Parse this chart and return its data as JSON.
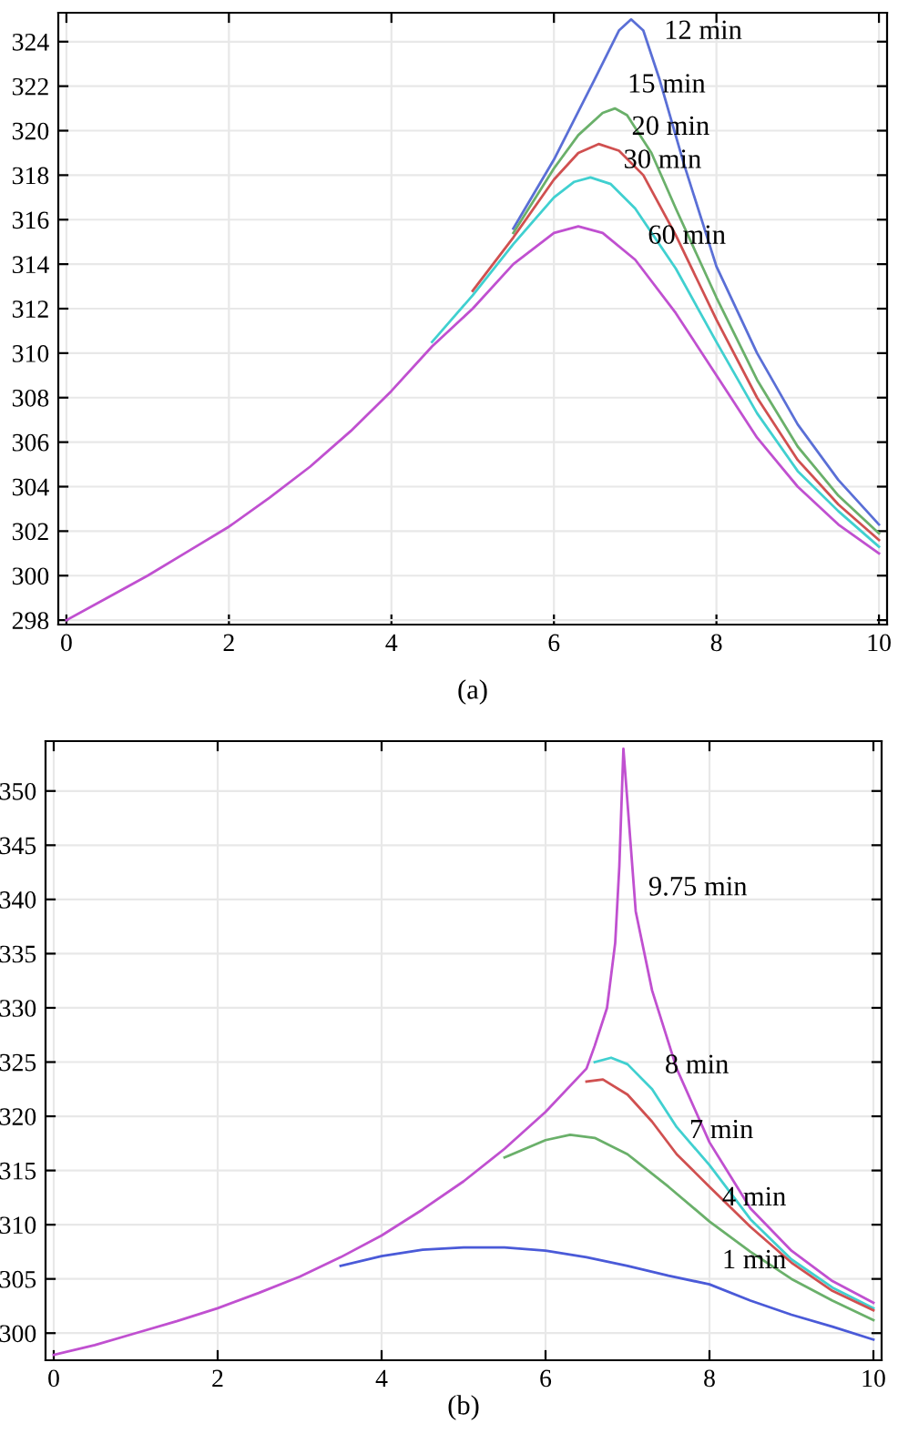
{
  "chart_data": [
    {
      "type": "line",
      "xlim": [
        -0.1,
        10.1
      ],
      "ylim": [
        297.8,
        325.3
      ],
      "xticks": [
        0,
        2,
        4,
        6,
        8,
        10
      ],
      "yticks": [
        298,
        300,
        302,
        304,
        306,
        308,
        310,
        312,
        314,
        316,
        318,
        320,
        322,
        324
      ],
      "grid": true,
      "legend": false,
      "marker": "none",
      "line_style": "solid",
      "series": [
        {
          "color": "#5a6fd6",
          "x": [
            5.5,
            6,
            6.5,
            6.8,
            6.95,
            7.1,
            7.3,
            7.6,
            8,
            8.5,
            9,
            9.5,
            10
          ],
          "values": [
            315.6,
            318.7,
            322.3,
            324.5,
            325,
            324.5,
            322.3,
            318.5,
            313.9,
            310,
            306.8,
            304.3,
            302.3
          ]
        },
        {
          "color": "#6ab06a",
          "x": [
            5.5,
            6,
            6.3,
            6.6,
            6.75,
            6.9,
            7.2,
            7.5,
            8,
            8.5,
            9,
            9.5,
            10
          ],
          "values": [
            315.4,
            318.3,
            319.8,
            320.8,
            321,
            320.7,
            319,
            316.5,
            312.5,
            308.8,
            305.8,
            303.6,
            301.9
          ]
        },
        {
          "color": "#d05050",
          "x": [
            5,
            5.5,
            6,
            6.3,
            6.55,
            6.8,
            7.1,
            7.5,
            8,
            8.5,
            9,
            9.5,
            10
          ],
          "values": [
            312.8,
            315.2,
            317.8,
            319,
            319.4,
            319.1,
            318,
            315.3,
            311.5,
            308,
            305.2,
            303.2,
            301.6
          ]
        },
        {
          "color": "#40d0d0",
          "x": [
            4.5,
            5,
            5.5,
            6,
            6.25,
            6.45,
            6.7,
            7,
            7.5,
            8,
            8.5,
            9,
            9.5,
            10
          ],
          "values": [
            310.5,
            312.6,
            314.9,
            317,
            317.7,
            317.9,
            317.6,
            316.5,
            313.8,
            310.5,
            307.3,
            304.7,
            302.9,
            301.3
          ]
        },
        {
          "color": "#c050d0",
          "x": [
            0,
            0.5,
            1,
            1.5,
            2,
            2.5,
            3,
            3.5,
            4,
            4.5,
            5,
            5.5,
            6,
            6.3,
            6.6,
            7,
            7.5,
            8,
            8.5,
            9,
            9.5,
            10
          ],
          "values": [
            298,
            299,
            300,
            301.1,
            302.2,
            303.5,
            304.9,
            306.5,
            308.3,
            310.3,
            312,
            314,
            315.4,
            315.7,
            315.4,
            314.2,
            311.8,
            309,
            306.2,
            304,
            302.3,
            301
          ]
        }
      ],
      "annotations": [
        {
          "text": "12 min",
          "x": 7.2,
          "y": 323.4
        },
        {
          "text": "15 min",
          "x": 6.75,
          "y": 321
        },
        {
          "text": "20 min",
          "x": 6.8,
          "y": 319.1
        },
        {
          "text": "30 min",
          "x": 6.7,
          "y": 317.6
        },
        {
          "text": "60 min",
          "x": 7,
          "y": 314.2
        },
        "(a)"
      ]
    },
    {
      "type": "line",
      "xlim": [
        -0.1,
        10.1
      ],
      "ylim": [
        297.5,
        354.6
      ],
      "xticks": [
        0,
        2,
        4,
        6,
        8,
        10
      ],
      "yticks": [
        300,
        305,
        310,
        315,
        320,
        325,
        330,
        335,
        340,
        345,
        350
      ],
      "grid": true,
      "legend": false,
      "marker": "none",
      "line_style": "solid",
      "series": [
        {
          "color": "#c050d0",
          "x": [
            0,
            0.5,
            1,
            1.5,
            2,
            2.5,
            3,
            3.5,
            4,
            4.5,
            5,
            5.5,
            6,
            6.5,
            6.6,
            6.75,
            6.85,
            6.9,
            6.95,
            7.1,
            7.3,
            7.6,
            8,
            8.5,
            9,
            9.5,
            10
          ],
          "values": [
            298,
            298.9,
            300,
            301.1,
            302.3,
            303.7,
            305.2,
            307,
            309,
            311.4,
            314,
            317,
            320.4,
            324.4,
            326.5,
            330,
            336,
            343,
            353.9,
            338.9,
            331.6,
            324.4,
            317.6,
            311.5,
            307.6,
            304.8,
            302.8
          ]
        },
        {
          "color": "#40d0d0",
          "x": [
            6.6,
            6.8,
            7,
            7.3,
            7.6,
            8,
            8.5,
            9,
            9.5,
            10
          ],
          "values": [
            325,
            325.4,
            324.8,
            322.5,
            319,
            315.5,
            310.5,
            306.8,
            304.2,
            302.3
          ]
        },
        {
          "color": "#d05050",
          "x": [
            6.5,
            6.7,
            7,
            7.3,
            7.6,
            8,
            8.5,
            9,
            9.5,
            10
          ],
          "values": [
            323.2,
            323.4,
            322,
            319.5,
            316.5,
            313.5,
            309.8,
            306.5,
            303.9,
            302.1
          ]
        },
        {
          "color": "#6ab06a",
          "x": [
            5.5,
            6,
            6.3,
            6.6,
            7,
            7.5,
            8,
            8.5,
            9,
            9.5,
            10
          ],
          "values": [
            316.2,
            317.8,
            318.3,
            318,
            316.5,
            313.5,
            310.3,
            307.5,
            305,
            303,
            301.2
          ]
        },
        {
          "color": "#4a5ad8",
          "x": [
            3.5,
            4,
            4.5,
            5,
            5.5,
            6,
            6.5,
            7,
            7.5,
            8,
            8.5,
            9,
            9.5,
            10
          ],
          "values": [
            306.2,
            307.1,
            307.7,
            307.9,
            307.9,
            307.6,
            307,
            306.2,
            305.3,
            304.5,
            303,
            301.7,
            300.6,
            299.4
          ]
        }
      ],
      "annotations": [
        {
          "text": "9.75 min",
          "x": 7.1,
          "y": 338.9
        },
        {
          "text": "8 min",
          "x": 7.3,
          "y": 322.5
        },
        {
          "text": "7 min",
          "x": 7.6,
          "y": 316.5
        },
        {
          "text": "4 min",
          "x": 8,
          "y": 310.3
        },
        {
          "text": "1 min",
          "x": 8,
          "y": 304.5
        },
        "(b)"
      ]
    }
  ]
}
